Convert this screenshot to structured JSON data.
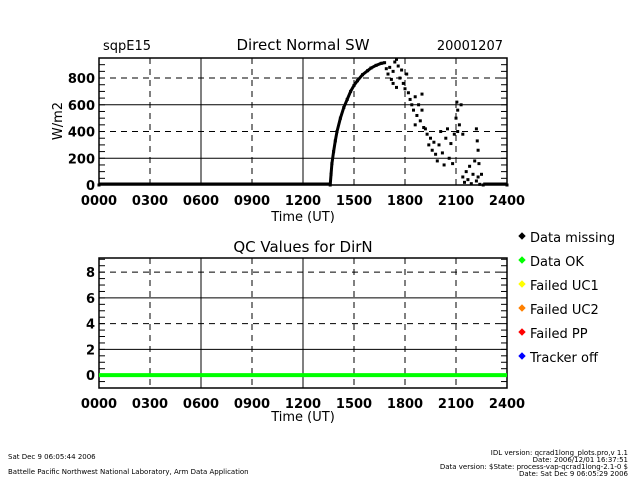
{
  "chart_data": [
    {
      "type": "scatter",
      "site": "sqpE15",
      "title": "Direct Normal SW",
      "date": "20001207",
      "xlabel": "Time (UT)",
      "ylabel": "W/m2",
      "xlim": [
        0,
        24
      ],
      "ylim": [
        0,
        950
      ],
      "xticks": [
        "0000",
        "0300",
        "0600",
        "0900",
        "1200",
        "1500",
        "1800",
        "2100",
        "2400"
      ],
      "yticks": [
        "0",
        "200",
        "400",
        "600",
        "800"
      ],
      "ytick_values": [
        0,
        200,
        400,
        600,
        800
      ],
      "grid": true,
      "color": "#000000",
      "points": [
        [
          0,
          0
        ],
        [
          13.6,
          0
        ],
        [
          13.65,
          80
        ],
        [
          13.7,
          160
        ],
        [
          13.8,
          250
        ],
        [
          13.9,
          330
        ],
        [
          14.0,
          400
        ],
        [
          14.2,
          500
        ],
        [
          14.4,
          580
        ],
        [
          14.6,
          640
        ],
        [
          14.8,
          700
        ],
        [
          15.0,
          745
        ],
        [
          15.2,
          780
        ],
        [
          15.5,
          825
        ],
        [
          15.8,
          855
        ],
        [
          16.0,
          875
        ],
        [
          16.3,
          895
        ],
        [
          16.6,
          910
        ],
        [
          16.8,
          915
        ],
        [
          16.9,
          870
        ],
        [
          17.0,
          830
        ],
        [
          17.1,
          880
        ],
        [
          17.2,
          790
        ],
        [
          17.3,
          850
        ],
        [
          17.4,
          920
        ],
        [
          17.5,
          940
        ],
        [
          17.6,
          890
        ],
        [
          17.7,
          800
        ],
        [
          17.8,
          860
        ],
        [
          17.9,
          760
        ],
        [
          18.0,
          720
        ],
        [
          17.3,
          760
        ],
        [
          17.5,
          730
        ],
        [
          18.1,
          830
        ],
        [
          18.2,
          690
        ],
        [
          18.3,
          640
        ],
        [
          18.4,
          600
        ],
        [
          18.5,
          560
        ],
        [
          18.6,
          660
        ],
        [
          18.7,
          520
        ],
        [
          18.8,
          600
        ],
        [
          18.9,
          480
        ],
        [
          19.0,
          560
        ],
        [
          19.1,
          430
        ],
        [
          18.6,
          450
        ],
        [
          19.0,
          680
        ],
        [
          19.2,
          420
        ],
        [
          19.3,
          380
        ],
        [
          19.4,
          300
        ],
        [
          19.5,
          350
        ],
        [
          19.6,
          260
        ],
        [
          19.7,
          320
        ],
        [
          19.8,
          230
        ],
        [
          19.9,
          180
        ],
        [
          20.0,
          300
        ],
        [
          20.1,
          400
        ],
        [
          20.2,
          240
        ],
        [
          20.3,
          150
        ],
        [
          20.4,
          350
        ],
        [
          20.5,
          420
        ],
        [
          20.6,
          200
        ],
        [
          20.7,
          310
        ],
        [
          20.8,
          160
        ],
        [
          20.9,
          380
        ],
        [
          21.0,
          500
        ],
        [
          21.05,
          620
        ],
        [
          21.1,
          560
        ],
        [
          21.2,
          450
        ],
        [
          21.3,
          600
        ],
        [
          21.1,
          400
        ],
        [
          21.4,
          380
        ],
        [
          21.4,
          60
        ],
        [
          21.5,
          20
        ],
        [
          21.6,
          100
        ],
        [
          21.7,
          40
        ],
        [
          21.8,
          140
        ],
        [
          21.9,
          10
        ],
        [
          22.0,
          80
        ],
        [
          22.1,
          180
        ],
        [
          22.2,
          30
        ],
        [
          22.3,
          60
        ],
        [
          22.4,
          5
        ],
        [
          22.2,
          420
        ],
        [
          22.25,
          330
        ],
        [
          22.3,
          260
        ],
        [
          22.35,
          160
        ],
        [
          22.5,
          80
        ],
        [
          22.6,
          0
        ],
        [
          24,
          0
        ]
      ]
    },
    {
      "type": "line",
      "title": "QC Values for DirN",
      "xlabel": "Time (UT)",
      "xlim": [
        0,
        24
      ],
      "ylim": [
        -1,
        9.1
      ],
      "xticks": [
        "0000",
        "0300",
        "0600",
        "0900",
        "1200",
        "1500",
        "1800",
        "2100",
        "2400"
      ],
      "yticks": [
        "0",
        "2",
        "4",
        "6",
        "8"
      ],
      "ytick_values": [
        0,
        2,
        4,
        6,
        8
      ],
      "grid": true,
      "series": [
        {
          "name": "Data OK",
          "x": [
            0,
            24
          ],
          "y": [
            0,
            0
          ],
          "color": "#00ff00"
        }
      ],
      "legend": {
        "placement": "right",
        "entries": [
          {
            "label": "Data missing",
            "color": "#000000"
          },
          {
            "label": "Data OK",
            "color": "#00ff00"
          },
          {
            "label": "Failed UC1",
            "color": "#ffff00"
          },
          {
            "label": "Failed UC2",
            "color": "#ff8000"
          },
          {
            "label": "Failed PP",
            "color": "#ff0000"
          },
          {
            "label": "Tracker off",
            "color": "#0000ff"
          }
        ]
      }
    }
  ],
  "footer": {
    "left_date": "Sat Dec  9 06:05:44 2006",
    "left_org": "Battelle Pacific Northwest National Laboratory, Arm Data Application",
    "right_lines": [
      "IDL version: qcrad1long_plots.pro,v 1.1",
      "Date: 2006/12/01 16:37:51",
      "Data version: $State: process-vap-qcrad1long-2.1-0 $",
      "Date: Sat Dec  9 06:05:29 2006"
    ]
  }
}
